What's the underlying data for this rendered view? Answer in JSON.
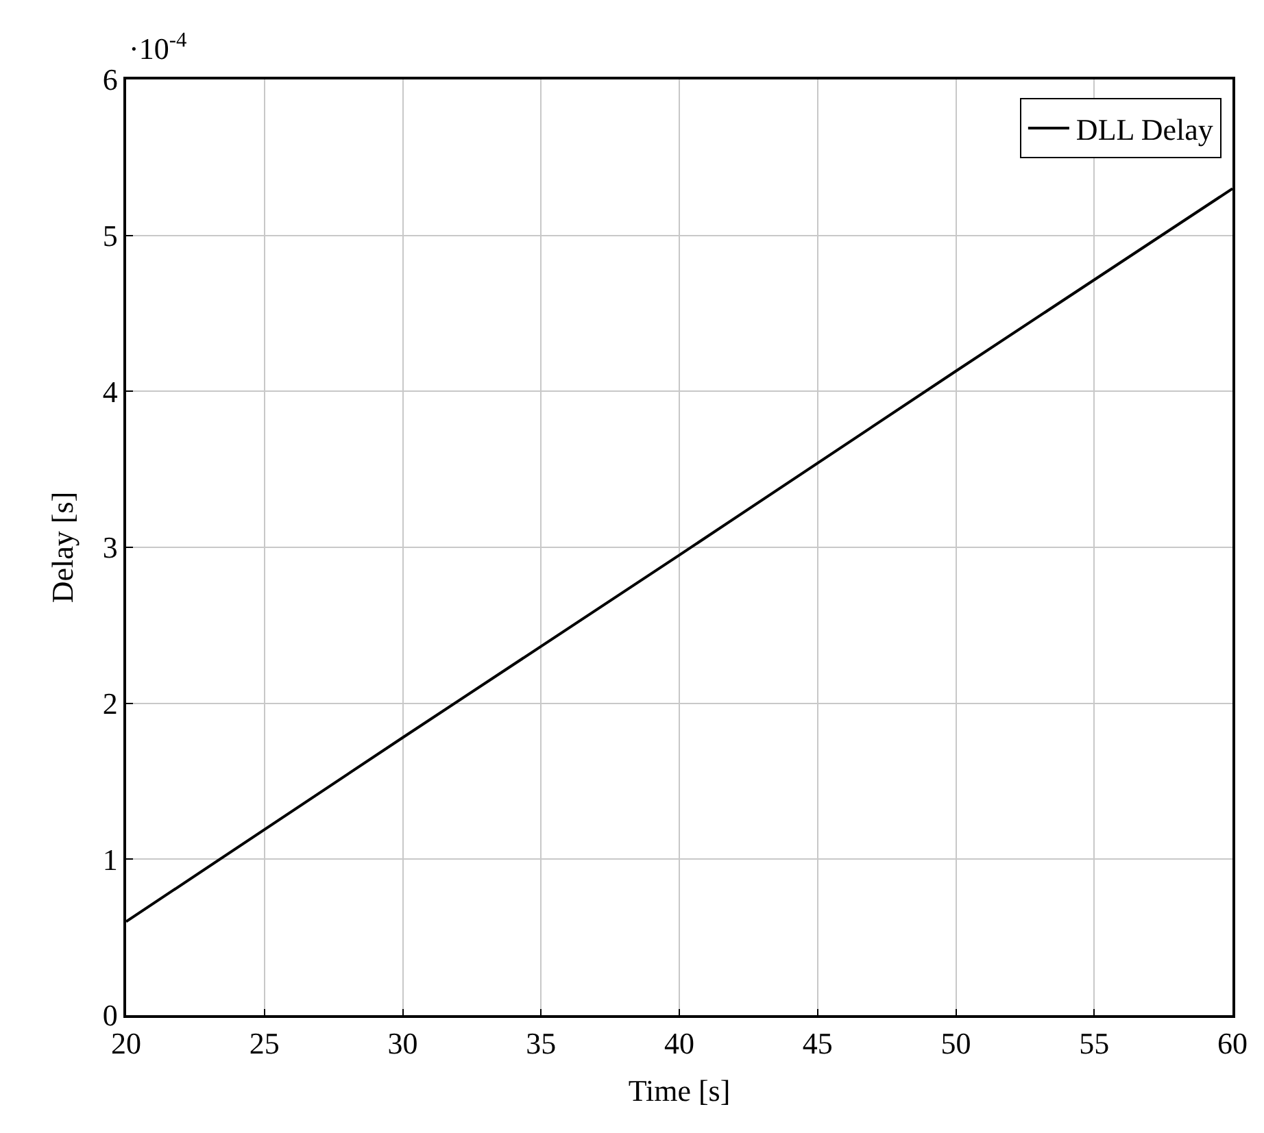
{
  "chart_data": {
    "type": "line",
    "xlabel": "Time [s]",
    "ylabel": "Delay [s]",
    "annotations": [
      "·10$^{-4}$"
    ],
    "x": [
      20,
      30,
      40,
      50,
      60
    ],
    "series": [
      {
        "name": "DLL Delay",
        "color": "#000000",
        "values": [
          0.6,
          1.78,
          2.95,
          4.13,
          5.3
        ]
      }
    ],
    "xlim": [
      20,
      60
    ],
    "xticks": [
      20,
      25,
      30,
      35,
      40,
      45,
      50,
      55,
      60
    ],
    "ylim": [
      0,
      6
    ],
    "yticks": [
      0,
      1,
      2,
      3,
      4,
      5,
      6
    ],
    "grid": true,
    "legend": "top right",
    "marker": "none",
    "line_style": "solid"
  }
}
